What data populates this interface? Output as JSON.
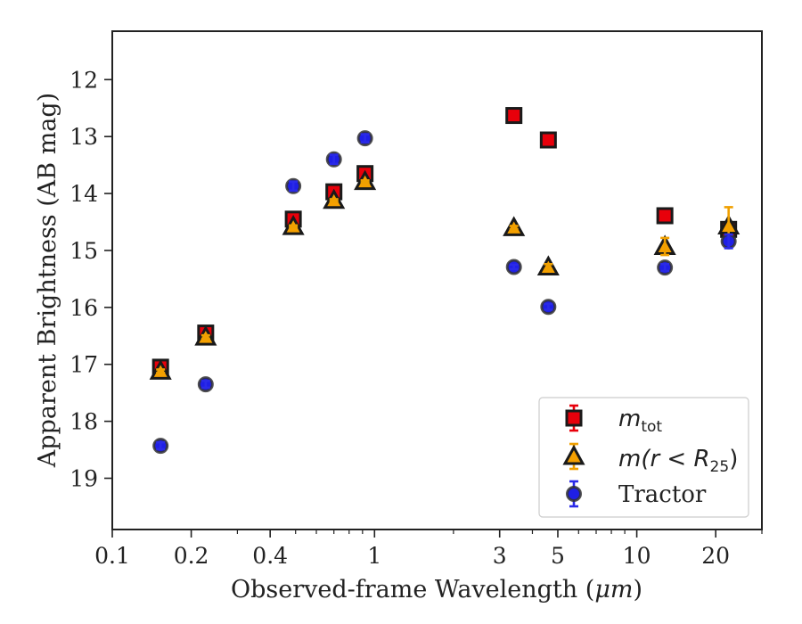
{
  "chart_data": {
    "type": "scatter",
    "xlabel_text": "Observed-frame Wavelength (",
    "xlabel_unit": "μm",
    "xlabel_close": ")",
    "ylabel": "Apparent Brightness (AB mag)",
    "x_scale": "log",
    "xlim": [
      0.1,
      30
    ],
    "ylim": [
      19.9,
      11.15
    ],
    "y_inverted": true,
    "x_ticks": [
      {
        "value": 0.1,
        "label": "0.1"
      },
      {
        "value": 0.2,
        "label": "0.2"
      },
      {
        "value": 0.4,
        "label": "0.4"
      },
      {
        "value": 1,
        "label": "1"
      },
      {
        "value": 3,
        "label": "3"
      },
      {
        "value": 5,
        "label": "5"
      },
      {
        "value": 10,
        "label": "10"
      },
      {
        "value": 20,
        "label": "20"
      }
    ],
    "x_minor_ticks": [
      0.3,
      0.5,
      0.6,
      0.7,
      0.8,
      0.9,
      2,
      4,
      6,
      7,
      8,
      9,
      30
    ],
    "y_ticks": [
      {
        "value": 12,
        "label": "12"
      },
      {
        "value": 13,
        "label": "13"
      },
      {
        "value": 14,
        "label": "14"
      },
      {
        "value": 15,
        "label": "15"
      },
      {
        "value": 16,
        "label": "16"
      },
      {
        "value": 17,
        "label": "17"
      },
      {
        "value": 18,
        "label": "18"
      },
      {
        "value": 19,
        "label": "19"
      }
    ],
    "grid": false,
    "legend_position": "lower right",
    "series": [
      {
        "key": "mtot",
        "legend_main": "m",
        "legend_sub": "tot",
        "marker": "square",
        "color": "#e8000b",
        "errcolor": "#e8000b",
        "x": [
          0.1528,
          0.2271,
          0.49,
          0.7,
          0.92,
          3.4,
          4.6,
          12.8,
          22.4
        ],
        "y": [
          17.05,
          16.45,
          14.45,
          13.97,
          13.65,
          12.63,
          13.06,
          14.39,
          14.63
        ],
        "err": [
          0.03,
          0.03,
          0.02,
          0.02,
          0.02,
          0.02,
          0.02,
          0.04,
          0.1
        ]
      },
      {
        "key": "mr25",
        "legend_main": "m(r < R",
        "legend_sub": "25",
        "legend_close": ")",
        "marker": "triangle",
        "color": "#f5a000",
        "errcolor": "#f0a000",
        "x": [
          0.1528,
          0.2271,
          0.49,
          0.7,
          0.92,
          3.4,
          4.6,
          12.8,
          22.4
        ],
        "y": [
          17.12,
          16.52,
          14.58,
          14.12,
          13.79,
          14.6,
          15.29,
          14.93,
          14.57
        ],
        "err": [
          0.03,
          0.03,
          0.02,
          0.02,
          0.02,
          0.03,
          0.05,
          0.15,
          0.33
        ]
      },
      {
        "key": "tractor",
        "legend_main": "Tractor",
        "marker": "circle",
        "color": "#1f1fe6",
        "errcolor": "#2a2ae8",
        "x": [
          0.1528,
          0.2271,
          0.49,
          0.7,
          0.92,
          3.4,
          4.6,
          12.8,
          22.4
        ],
        "y": [
          18.43,
          17.35,
          13.87,
          13.4,
          13.03,
          15.29,
          15.99,
          15.3,
          14.84
        ],
        "err": [
          0.06,
          0.06,
          0.08,
          0.08,
          0.07,
          0.04,
          0.05,
          0.06,
          0.12
        ]
      }
    ]
  }
}
